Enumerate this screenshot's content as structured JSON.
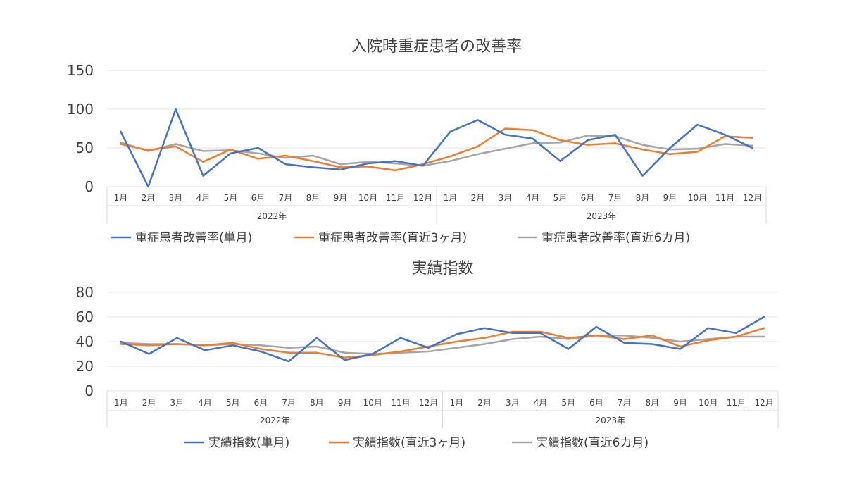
{
  "colors": {
    "single": "#4472c4",
    "ma3": "#ed7d31",
    "ma6": "#a5a5a5"
  },
  "chart_data": [
    {
      "type": "line",
      "title": "入院時重症患者の改善率",
      "categories": [
        "1月",
        "2月",
        "3月",
        "4月",
        "5月",
        "6月",
        "7月",
        "8月",
        "9月",
        "10月",
        "11月",
        "12月",
        "1月",
        "2月",
        "3月",
        "4月",
        "5月",
        "6月",
        "7月",
        "8月",
        "9月",
        "10月",
        "11月",
        "12月"
      ],
      "groups": [
        "2022年",
        "2023年"
      ],
      "ylim": [
        0,
        150
      ],
      "yticks": [
        0,
        50,
        100,
        150
      ],
      "grid": true,
      "legend": "bottom",
      "series": [
        {
          "name": "重症患者改善率(単月)",
          "color": "#4472c4",
          "values": [
            71,
            0,
            100,
            14,
            43,
            50,
            29,
            25,
            22,
            30,
            33,
            27,
            71,
            86,
            67,
            62,
            33,
            60,
            67,
            14,
            50,
            80,
            67,
            50
          ]
        },
        {
          "name": "重症患者改善率(直近3ヶ月)",
          "color": "#ed7d31",
          "values": [
            55,
            47,
            52,
            32,
            48,
            36,
            40,
            33,
            25,
            26,
            21,
            29,
            39,
            52,
            75,
            73,
            60,
            54,
            56,
            48,
            42,
            45,
            65,
            63
          ]
        },
        {
          "name": "重症患者改善率(直近6カ月)",
          "color": "#a5a5a5",
          "values": [
            57,
            46,
            55,
            46,
            47,
            43,
            37,
            40,
            29,
            32,
            30,
            27,
            33,
            42,
            49,
            56,
            57,
            66,
            65,
            54,
            48,
            49,
            55,
            53
          ]
        }
      ]
    },
    {
      "type": "line",
      "title": "実績指数",
      "categories": [
        "1月",
        "2月",
        "3月",
        "4月",
        "5月",
        "6月",
        "7月",
        "8月",
        "9月",
        "10月",
        "11月",
        "12月",
        "1月",
        "2月",
        "3月",
        "4月",
        "5月",
        "6月",
        "7月",
        "8月",
        "9月",
        "10月",
        "11月",
        "12月"
      ],
      "groups": [
        "2022年",
        "2023年"
      ],
      "ylim": [
        0,
        80
      ],
      "yticks": [
        0,
        20,
        40,
        60,
        80
      ],
      "grid": true,
      "legend": "bottom",
      "series": [
        {
          "name": "実績指数(単月)",
          "color": "#4472c4",
          "values": [
            40,
            30,
            43,
            33,
            37,
            32,
            24,
            43,
            25,
            30,
            43,
            35,
            46,
            51,
            47,
            47,
            34,
            52,
            39,
            38,
            34,
            51,
            47,
            60
          ]
        },
        {
          "name": "実績指数(直近3ヶ月)",
          "color": "#ed7d31",
          "values": [
            38,
            37,
            38,
            37,
            39,
            34,
            31,
            31,
            27,
            29,
            32,
            36,
            40,
            43,
            48,
            48,
            43,
            45,
            42,
            45,
            36,
            41,
            44,
            51
          ]
        },
        {
          "name": "実績指数(直近6カ月)",
          "color": "#a5a5a5",
          "values": [
            39,
            38,
            38,
            37,
            38,
            37,
            35,
            36,
            31,
            30,
            31,
            32,
            35,
            38,
            42,
            44,
            42,
            45,
            45,
            43,
            40,
            42,
            44,
            44
          ]
        }
      ]
    }
  ]
}
